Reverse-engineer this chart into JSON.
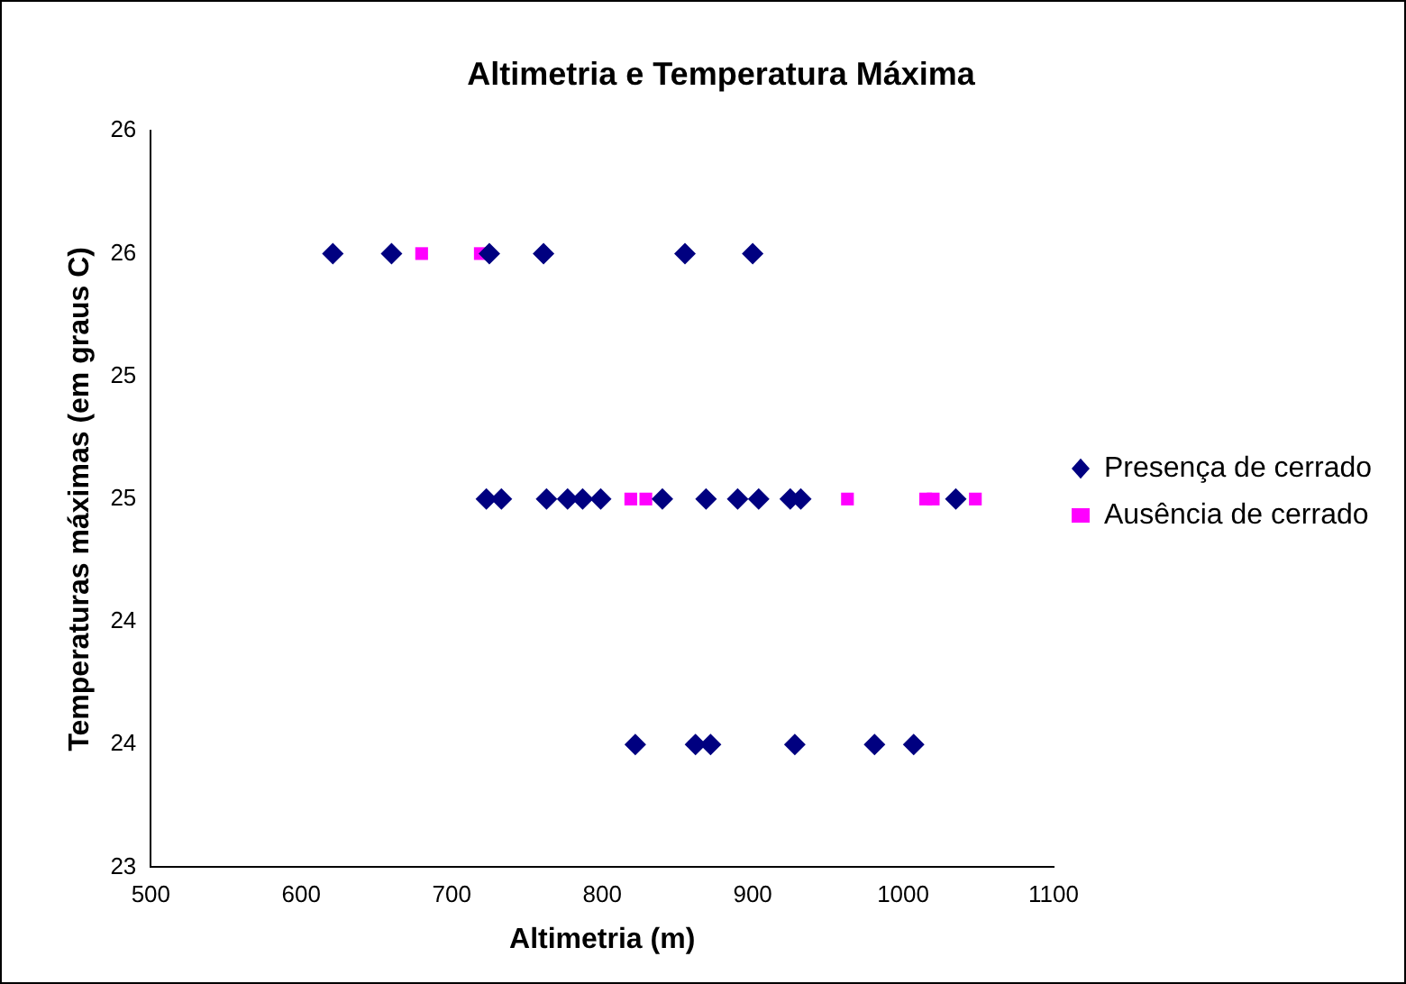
{
  "chart_data": {
    "type": "scatter",
    "title": "Altimetria e Temperatura Máxima",
    "xlabel": "Altimetria (m)",
    "ylabel": "Temperaturas máximas (em graus C)",
    "xlim": [
      500,
      1100
    ],
    "xticks": [
      500,
      600,
      700,
      800,
      900,
      1000,
      1100
    ],
    "ylim": [
      23,
      26
    ],
    "yticks": [
      23,
      {
        "value": 23.5,
        "label": "24"
      },
      24,
      {
        "value": 24.5,
        "label": "25"
      },
      25,
      {
        "value": 25.5,
        "label": "26"
      },
      26
    ],
    "grid": false,
    "legend": "right",
    "series": [
      {
        "name": "Presença de cerrado",
        "color": "#000080",
        "marker": "diamond",
        "x": [
          621,
          660,
          725,
          761,
          855,
          900,
          723,
          733,
          763,
          777,
          787,
          799,
          840,
          869,
          890,
          904,
          925,
          932,
          1035,
          822,
          862,
          872,
          928,
          981,
          1007
        ],
        "values": [
          25.5,
          25.5,
          25.5,
          25.5,
          25.5,
          25.5,
          24.5,
          24.5,
          24.5,
          24.5,
          24.5,
          24.5,
          24.5,
          24.5,
          24.5,
          24.5,
          24.5,
          24.5,
          24.5,
          23.5,
          23.5,
          23.5,
          23.5,
          23.5,
          23.5
        ]
      },
      {
        "name": "Ausência de cerrado",
        "color": "#ff00ff",
        "marker": "square",
        "x": [
          680,
          719,
          819,
          829,
          963,
          1015,
          1020,
          1048
        ],
        "values": [
          25.5,
          25.5,
          24.5,
          24.5,
          24.5,
          24.5,
          24.5,
          24.5
        ]
      }
    ]
  }
}
